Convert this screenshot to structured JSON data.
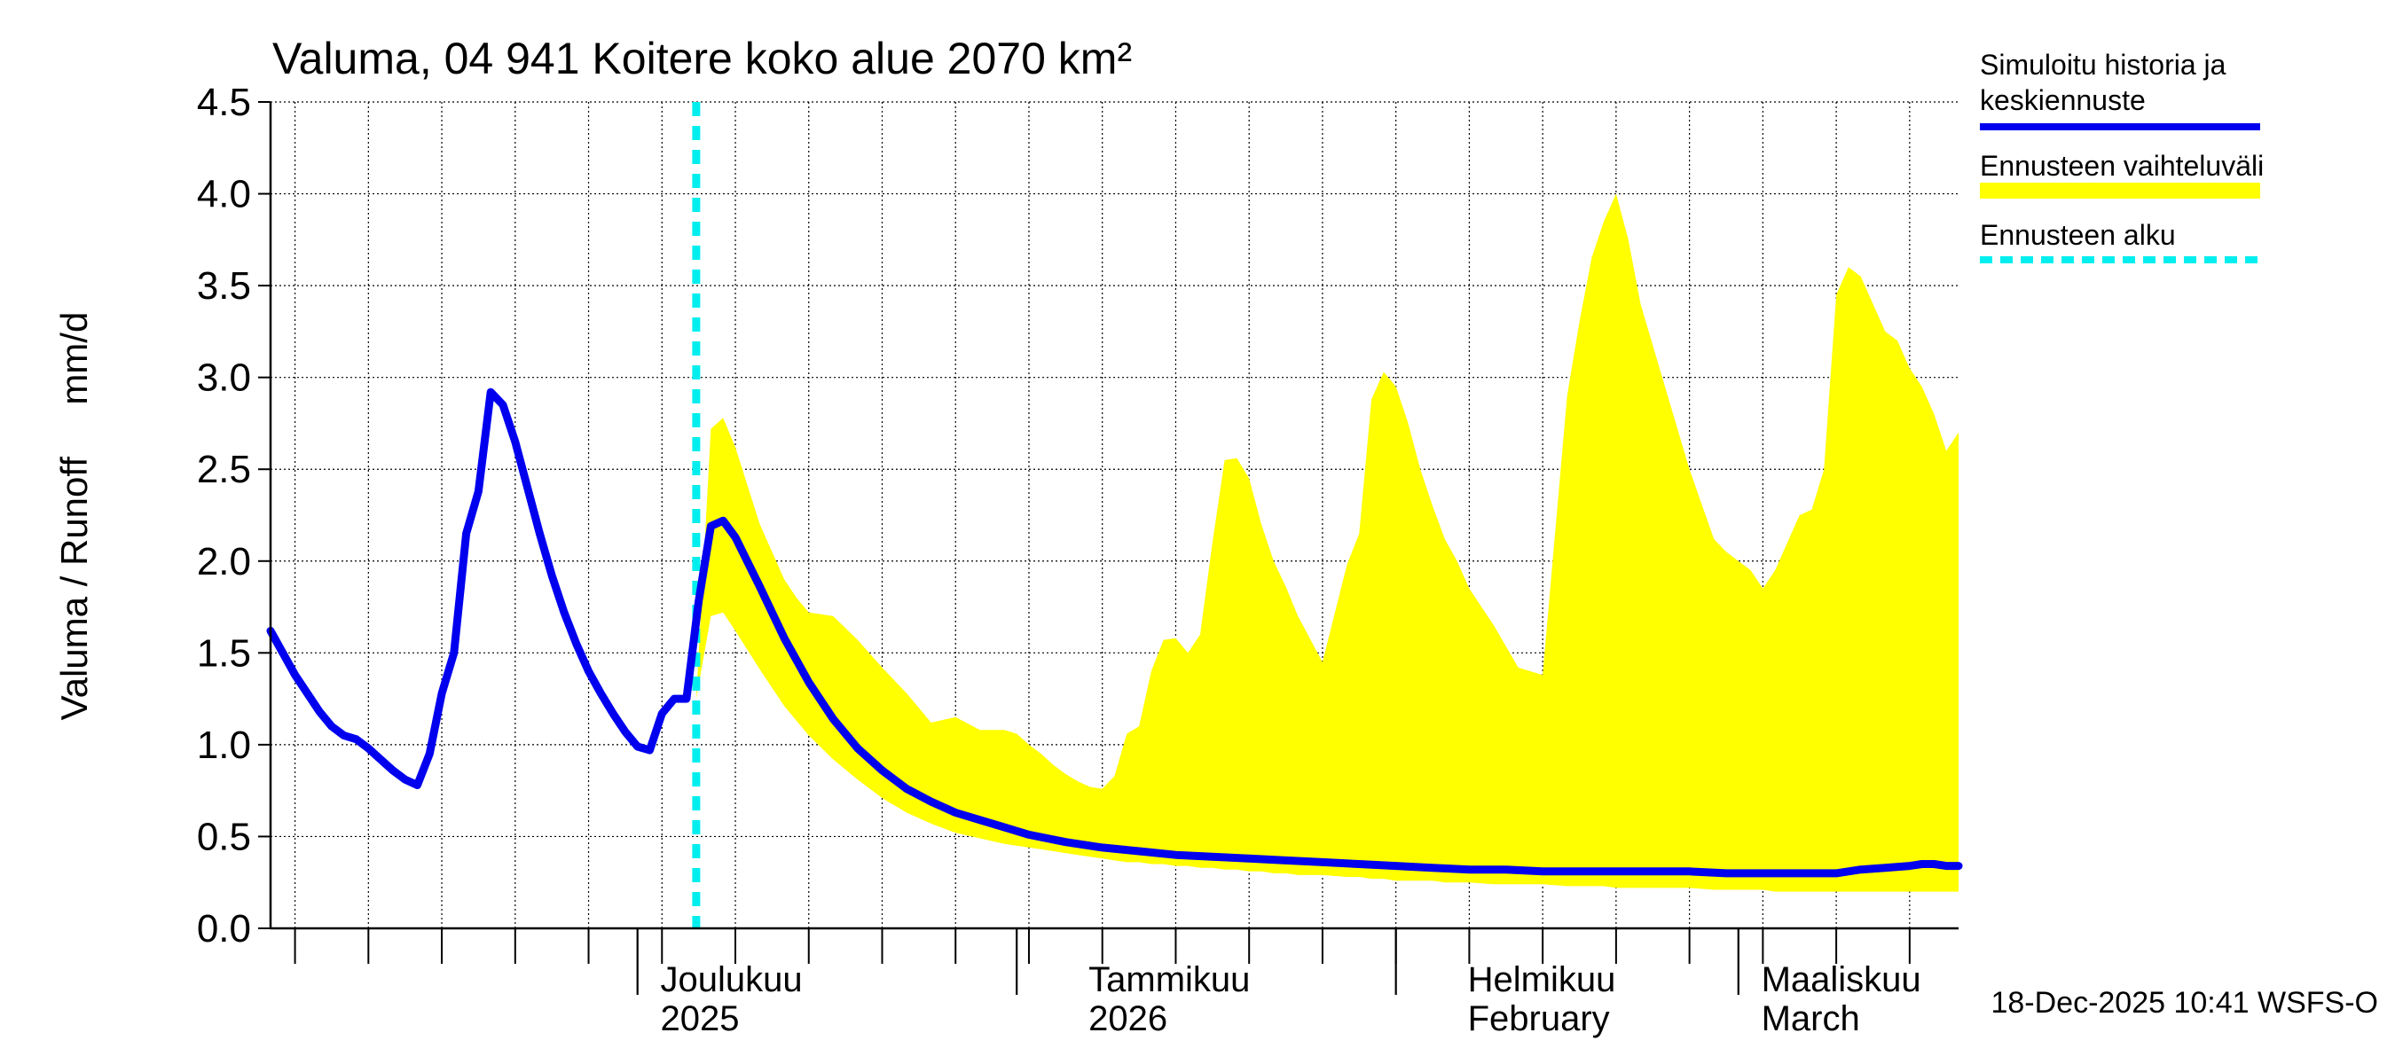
{
  "chart_data": {
    "type": "area",
    "title": "Valuma, 04 941 Koitere koko alue 2070 km²",
    "ylabel": "Valuma / Runoff     mm/d",
    "xlabel": "",
    "ylim": [
      0,
      4.5
    ],
    "yticks": [
      "0.0",
      "0.5",
      "1.0",
      "1.5",
      "2.0",
      "2.5",
      "3.0",
      "3.5",
      "4.0",
      "4.5"
    ],
    "x_unit": "days since 2025-11-01",
    "xlim": [
      0,
      138
    ],
    "grid": true,
    "month_boundaries": [
      30,
      61,
      92,
      120
    ],
    "week_ticks": [
      2,
      8,
      14,
      20,
      26,
      32,
      38,
      44,
      50,
      56,
      62,
      68,
      74,
      80,
      86,
      92,
      98,
      104,
      110,
      116,
      122,
      128,
      134
    ],
    "month_labels": [
      {
        "x": 31,
        "line1": "Joulukuu",
        "line2": "2025"
      },
      {
        "x": 66,
        "line1": "Tammikuu",
        "line2": "2026"
      },
      {
        "x": 97,
        "line1": "Helmikuu",
        "line2": "February"
      },
      {
        "x": 121,
        "line1": "Maaliskuu",
        "line2": "March"
      }
    ],
    "forecast_start_x": 34.8,
    "series": [
      {
        "name": "Simuloitu historia ja keskiennuste",
        "role": "line",
        "color": "#0000ee",
        "x": [
          0,
          1,
          2,
          3,
          4,
          5,
          6,
          7,
          8,
          9,
          10,
          11,
          12,
          13,
          14,
          15,
          16,
          17,
          18,
          19,
          20,
          21,
          22,
          23,
          24,
          25,
          26,
          27,
          28,
          29,
          30,
          31,
          32,
          33,
          34,
          35,
          36,
          37,
          38,
          40,
          42,
          44,
          46,
          48,
          50,
          52,
          54,
          56,
          58,
          60,
          62,
          65,
          68,
          71,
          74,
          77,
          80,
          83,
          86,
          89,
          92,
          95,
          98,
          101,
          104,
          107,
          110,
          113,
          116,
          119,
          122,
          125,
          128,
          130,
          132,
          134,
          135,
          136,
          137,
          138
        ],
        "values": [
          1.62,
          1.5,
          1.38,
          1.28,
          1.18,
          1.1,
          1.05,
          1.03,
          0.98,
          0.92,
          0.86,
          0.81,
          0.78,
          0.95,
          1.28,
          1.5,
          2.15,
          2.38,
          2.92,
          2.85,
          2.65,
          2.4,
          2.15,
          1.92,
          1.72,
          1.55,
          1.4,
          1.28,
          1.17,
          1.07,
          0.99,
          0.97,
          1.17,
          1.25,
          1.25,
          1.78,
          2.19,
          2.22,
          2.13,
          1.86,
          1.58,
          1.34,
          1.14,
          0.98,
          0.86,
          0.76,
          0.69,
          0.63,
          0.59,
          0.55,
          0.51,
          0.47,
          0.44,
          0.42,
          0.4,
          0.39,
          0.38,
          0.37,
          0.36,
          0.35,
          0.34,
          0.33,
          0.32,
          0.32,
          0.31,
          0.31,
          0.31,
          0.31,
          0.31,
          0.3,
          0.3,
          0.3,
          0.3,
          0.32,
          0.33,
          0.34,
          0.35,
          0.35,
          0.34,
          0.34
        ]
      },
      {
        "name": "Ennusteen vaihteluväli",
        "role": "band",
        "color": "#ffff00",
        "x": [
          34.8,
          36,
          37,
          38,
          40,
          42,
          43,
          44,
          46,
          48,
          50,
          51,
          52,
          54,
          56,
          58,
          60,
          61,
          62,
          63,
          64,
          65,
          66,
          67,
          68,
          69,
          70,
          71,
          72,
          73,
          74,
          75,
          76,
          77,
          78,
          79,
          80,
          81,
          82,
          83,
          84,
          86,
          88,
          89,
          90,
          91,
          92,
          93,
          94,
          95,
          96,
          97,
          98,
          100,
          102,
          104,
          106,
          107,
          108,
          109,
          110,
          111,
          112,
          114,
          116,
          118,
          119,
          120,
          121,
          122,
          123,
          124,
          125,
          126,
          127,
          128,
          129,
          130,
          131,
          132,
          133,
          134,
          135,
          136,
          137,
          138
        ],
        "upper": [
          1.25,
          2.72,
          2.78,
          2.62,
          2.2,
          1.9,
          1.8,
          1.72,
          1.7,
          1.57,
          1.42,
          1.35,
          1.28,
          1.12,
          1.15,
          1.08,
          1.08,
          1.06,
          1.0,
          0.95,
          0.89,
          0.84,
          0.8,
          0.77,
          0.76,
          0.83,
          1.06,
          1.1,
          1.4,
          1.57,
          1.58,
          1.5,
          1.6,
          2.1,
          2.55,
          2.56,
          2.45,
          2.2,
          2.0,
          1.86,
          1.7,
          1.45,
          1.98,
          2.15,
          2.88,
          3.03,
          2.95,
          2.75,
          2.5,
          2.3,
          2.12,
          2.0,
          1.85,
          1.65,
          1.42,
          1.38,
          2.9,
          3.3,
          3.65,
          3.85,
          4.0,
          3.75,
          3.4,
          2.95,
          2.5,
          2.12,
          2.05,
          2.0,
          1.95,
          1.85,
          1.95,
          2.1,
          2.25,
          2.28,
          2.5,
          3.45,
          3.6,
          3.55,
          3.4,
          3.25,
          3.2,
          3.05,
          2.95,
          2.8,
          2.6,
          2.7
        ],
        "lower": [
          1.25,
          1.7,
          1.72,
          1.62,
          1.41,
          1.21,
          1.13,
          1.05,
          0.92,
          0.81,
          0.71,
          0.67,
          0.63,
          0.57,
          0.52,
          0.49,
          0.46,
          0.45,
          0.44,
          0.43,
          0.42,
          0.41,
          0.4,
          0.39,
          0.38,
          0.37,
          0.36,
          0.36,
          0.35,
          0.35,
          0.34,
          0.34,
          0.33,
          0.33,
          0.32,
          0.32,
          0.31,
          0.31,
          0.3,
          0.3,
          0.29,
          0.29,
          0.28,
          0.28,
          0.27,
          0.27,
          0.26,
          0.26,
          0.26,
          0.26,
          0.25,
          0.25,
          0.25,
          0.24,
          0.24,
          0.24,
          0.23,
          0.23,
          0.23,
          0.23,
          0.22,
          0.22,
          0.22,
          0.22,
          0.22,
          0.21,
          0.21,
          0.21,
          0.21,
          0.21,
          0.2,
          0.2,
          0.2,
          0.2,
          0.2,
          0.2,
          0.2,
          0.2,
          0.2,
          0.2,
          0.2,
          0.2,
          0.2,
          0.2,
          0.2,
          0.2
        ]
      }
    ],
    "legend": {
      "placement": "right",
      "entries": [
        {
          "line1": "Simuloitu historia ja",
          "line2": "keskiennuste",
          "color": "#0000ee",
          "style": "solid"
        },
        {
          "line1": "Ennusteen vaihteluväli",
          "line2": "",
          "color": "#ffff00",
          "style": "band"
        },
        {
          "line1": "Ennusteen alku",
          "line2": "",
          "color": "#00eeee",
          "style": "dashed"
        }
      ]
    },
    "timestamp": "18-Dec-2025 10:41 WSFS-O"
  }
}
